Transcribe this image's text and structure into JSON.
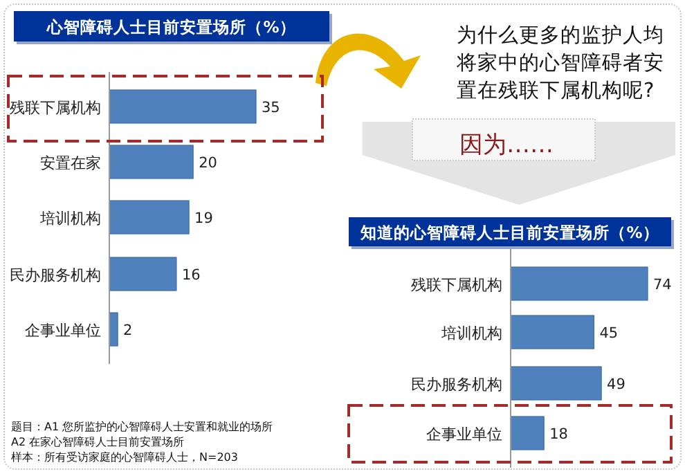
{
  "chart_data": [
    {
      "type": "bar",
      "orientation": "horizontal",
      "title": "心智障碍人士目前安置场所（%）",
      "categories": [
        "残联下属机构",
        "安置在家",
        "培训机构",
        "民办服务机构",
        "企事业单位"
      ],
      "values": [
        35,
        20,
        19,
        16,
        2
      ],
      "color": "#4f81bd",
      "data_labels": true,
      "annotations": [
        "为什么更多的监护人均将家中的心智障碍者安置在残联下属机构呢?",
        "因为……",
        "题目：A1 您所监护的心智障碍人士安置和就业的场所",
        "A2 在家心智障碍人士目前安置场所",
        "样本：所有受访家庭的心智障碍人士，N=203"
      ]
    },
    {
      "type": "bar",
      "orientation": "horizontal",
      "title": "知道的心智障碍人士目前安置场所（%）",
      "categories": [
        "残联下属机构",
        "培训机构",
        "民办服务机构",
        "企事业单位"
      ],
      "values": [
        74,
        45,
        49,
        18
      ],
      "color": "#4f81bd",
      "data_labels": true
    }
  ]
}
